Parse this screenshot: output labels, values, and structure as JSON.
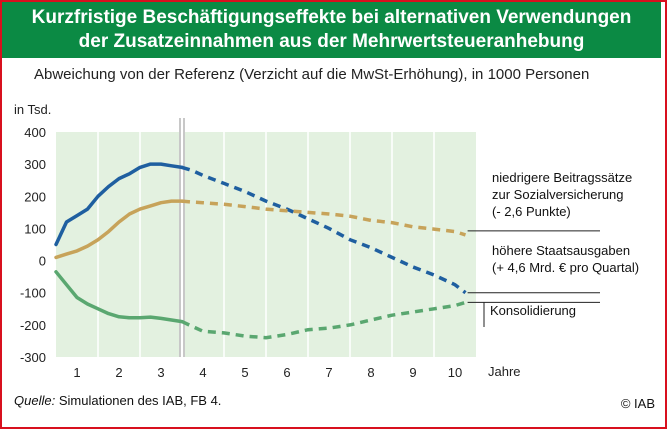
{
  "header": {
    "title_line1": "Kurzfristige Beschäftigungseffekte bei alternativen Verwendungen",
    "title_line2": "der Zusatzeinnahmen aus der Mehrwertsteueranhebung"
  },
  "footer": {
    "source_label": "Quelle:",
    "source_text": "Simulationen des IAB, FB 4.",
    "copyright": "© IAB"
  },
  "chart_data": {
    "type": "line",
    "title": "",
    "subtitle": "Abweichung von der Referenz (Verzicht auf die MwSt-Erhöhung), in 1000 Personen",
    "ylabel": "in Tsd.",
    "xlabel": "Jahre",
    "ylim": [
      -300,
      400
    ],
    "xlim": [
      0.5,
      10.5
    ],
    "xticks": [
      "1",
      "2",
      "3",
      "4",
      "5",
      "6",
      "7",
      "8",
      "9",
      "10"
    ],
    "yticks": [
      "400",
      "300",
      "200",
      "100",
      "0",
      "-100",
      "-200",
      "-300"
    ],
    "ytick_values": [
      400,
      300,
      200,
      100,
      0,
      -100,
      -200,
      -300
    ],
    "grid": "vertical",
    "break_x": 3.5,
    "colors": {
      "blue": "#1f5fa0",
      "gold": "#c7a35a",
      "green": "#5aa770",
      "header_green": "#0b8a44",
      "frame_red": "#d8101e",
      "band": "#e3f1e0"
    },
    "series": [
      {
        "name": "höhere Staatsausgaben (+ 4,6 Mrd. € pro Quartal)",
        "color": "#1f5fa0",
        "label_lines": [
          "höhere Staatsausgaben",
          "(+ 4,6 Mrd. € pro Quartal)"
        ],
        "x": [
          0.5,
          0.75,
          1.0,
          1.25,
          1.5,
          1.75,
          2.0,
          2.25,
          2.5,
          2.75,
          3.0,
          3.25,
          3.5,
          3.75,
          4.0,
          4.5,
          5.0,
          5.5,
          6.0,
          6.5,
          7.0,
          7.5,
          8.0,
          8.5,
          9.0,
          9.5,
          10.0,
          10.25
        ],
        "y": [
          50,
          120,
          140,
          160,
          200,
          230,
          255,
          270,
          290,
          300,
          300,
          295,
          290,
          280,
          265,
          240,
          215,
          185,
          160,
          130,
          100,
          65,
          40,
          10,
          -20,
          -45,
          -75,
          -100
        ]
      },
      {
        "name": "niedrigere Beitragssätze zur Sozialversicherung (- 2,6 Punkte)",
        "color": "#c7a35a",
        "label_lines": [
          "niedrigere Beitragssätze",
          "zur Sozialversicherung",
          "(- 2,6 Punkte)"
        ],
        "x": [
          0.5,
          0.75,
          1.0,
          1.25,
          1.5,
          1.75,
          2.0,
          2.25,
          2.5,
          2.75,
          3.0,
          3.25,
          3.5,
          3.75,
          4.0,
          4.5,
          5.0,
          5.5,
          6.0,
          6.5,
          7.0,
          7.5,
          8.0,
          8.5,
          9.0,
          9.5,
          10.0,
          10.25
        ],
        "y": [
          10,
          20,
          30,
          45,
          65,
          90,
          120,
          145,
          160,
          170,
          180,
          185,
          185,
          182,
          180,
          175,
          168,
          160,
          155,
          150,
          145,
          138,
          125,
          118,
          105,
          98,
          90,
          80
        ]
      },
      {
        "name": "Konsolidierung",
        "color": "#5aa770",
        "label_lines": [
          "Konsolidierung"
        ],
        "x": [
          0.5,
          0.75,
          1.0,
          1.25,
          1.5,
          1.75,
          2.0,
          2.25,
          2.5,
          2.75,
          3.0,
          3.25,
          3.5,
          3.75,
          4.0,
          4.5,
          5.0,
          5.5,
          6.0,
          6.5,
          7.0,
          7.5,
          8.0,
          8.5,
          9.0,
          9.5,
          10.0,
          10.25
        ],
        "y": [
          -35,
          -75,
          -115,
          -135,
          -150,
          -165,
          -175,
          -178,
          -178,
          -176,
          -180,
          -185,
          -190,
          -205,
          -220,
          -225,
          -235,
          -240,
          -230,
          -215,
          -210,
          -200,
          -185,
          -170,
          -160,
          -150,
          -140,
          -130
        ]
      }
    ]
  }
}
